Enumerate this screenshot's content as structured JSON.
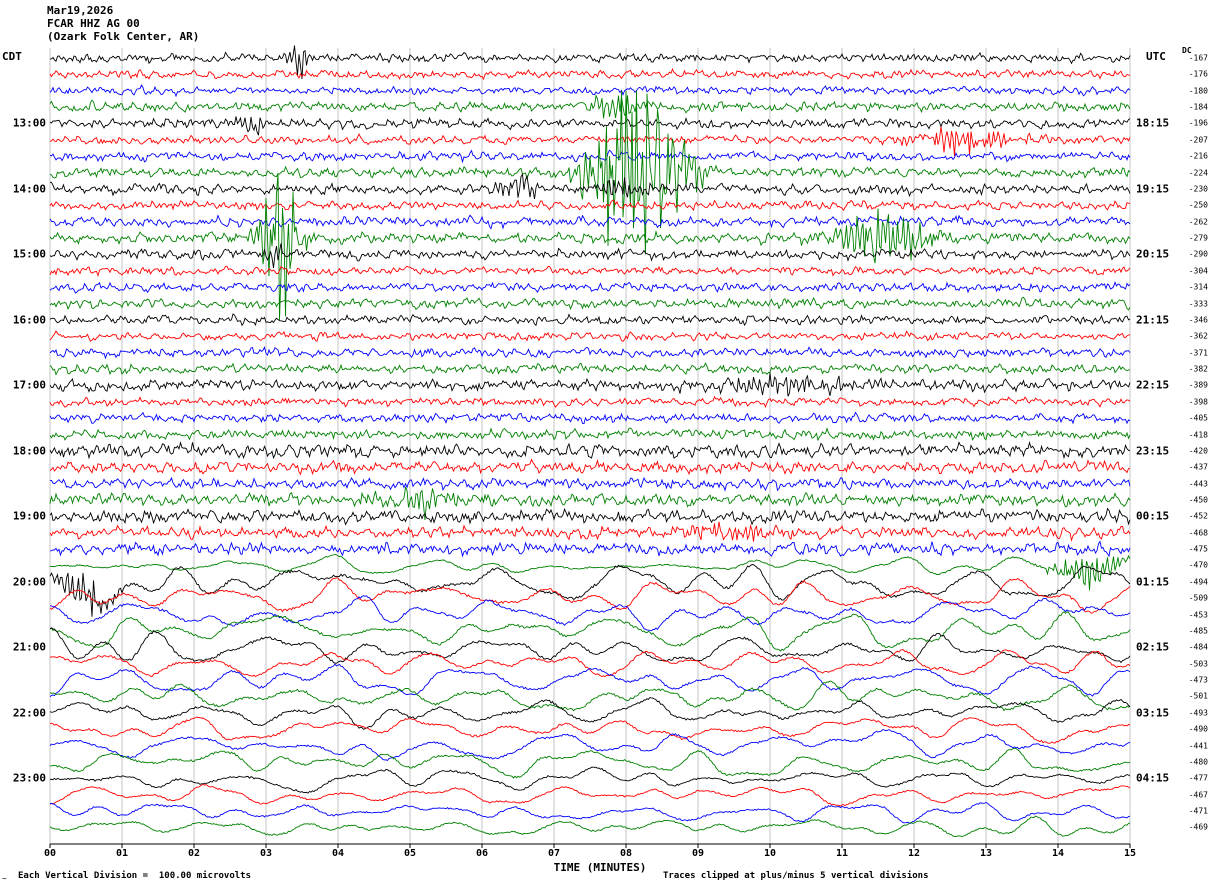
{
  "header": {
    "date": "Mar19,2026",
    "station": "FCAR HHZ AG 00",
    "location": "(Ozark Folk Center, AR)"
  },
  "axes": {
    "left_timezone": "CDT",
    "right_timezone": "UTC",
    "dc_header": "DC",
    "xlabel": "TIME (MINUTES)",
    "x_ticks": [
      "00",
      "01",
      "02",
      "03",
      "04",
      "05",
      "06",
      "07",
      "08",
      "09",
      "10",
      "11",
      "12",
      "13",
      "14",
      "15"
    ]
  },
  "hour_labels": [
    {
      "row": 4,
      "cdt": "13:00",
      "utc": "18:15"
    },
    {
      "row": 8,
      "cdt": "14:00",
      "utc": "19:15"
    },
    {
      "row": 12,
      "cdt": "15:00",
      "utc": "20:15"
    },
    {
      "row": 16,
      "cdt": "16:00",
      "utc": "21:15"
    },
    {
      "row": 20,
      "cdt": "17:00",
      "utc": "22:15"
    },
    {
      "row": 24,
      "cdt": "18:00",
      "utc": "23:15"
    },
    {
      "row": 28,
      "cdt": "19:00",
      "utc": "00:15"
    },
    {
      "row": 32,
      "cdt": "20:00",
      "utc": "01:15"
    },
    {
      "row": 36,
      "cdt": "21:00",
      "utc": "02:15"
    },
    {
      "row": 40,
      "cdt": "22:00",
      "utc": "03:15"
    },
    {
      "row": 44,
      "cdt": "23:00",
      "utc": "04:15"
    }
  ],
  "dc_values": [
    -167,
    -176,
    -180,
    -184,
    -196,
    -207,
    -216,
    -224,
    -230,
    -250,
    -262,
    -279,
    -290,
    -304,
    -314,
    -333,
    -346,
    -362,
    -371,
    -382,
    -389,
    -398,
    -405,
    -418,
    -420,
    -437,
    -443,
    -450,
    -452,
    -468,
    -475,
    -470,
    -494,
    -509,
    -453,
    -485,
    -484,
    -503,
    -473,
    -501,
    -493,
    -490,
    -441,
    -480,
    -477,
    -467,
    -471,
    -469
  ],
  "footer": {
    "left": "Each Vertical Division =  100.00 microvolts",
    "right": "Traces clipped at plus/minus 5 vertical divisions",
    "corner": "~"
  },
  "chart_data": {
    "type": "line",
    "subtype": "seismogram-helicorder",
    "title": "FCAR HHZ AG 00 (Ozark Folk Center, AR) Mar19,2026",
    "xlabel": "TIME (MINUTES)",
    "minutes_per_line": 15,
    "num_traces": 48,
    "first_trace_start_cdt": "12:00",
    "first_trace_start_utc": "17:15",
    "color_cycle": [
      "#000000",
      "#ff0000",
      "#0000ff",
      "#008000"
    ],
    "microvolts_per_division": 100,
    "clip_divisions": 5,
    "slow_style_start_row": 31,
    "trace_amps": [
      4.5,
      4,
      4,
      5,
      5,
      4,
      4.5,
      5,
      5,
      4.5,
      5,
      5.5,
      5,
      4,
      4.5,
      5,
      4.5,
      4,
      4.5,
      4.5,
      5.5,
      4,
      4.5,
      5,
      6.5,
      6,
      5.5,
      6,
      6.5,
      5.5,
      6,
      7,
      13,
      12,
      12,
      12,
      12,
      11,
      11,
      12,
      11,
      10,
      10,
      10,
      9,
      8,
      8,
      8
    ],
    "events": [
      {
        "trace": 0,
        "start": 3.3,
        "end": 3.6,
        "amp": 20
      },
      {
        "trace": 3,
        "start": 7.4,
        "end": 8.3,
        "amp": 13
      },
      {
        "trace": 4,
        "start": 2.5,
        "end": 3.3,
        "amp": 9
      },
      {
        "trace": 5,
        "start": 11.8,
        "end": 13.6,
        "amp": 12
      },
      {
        "trace": 7,
        "start": 7.4,
        "end": 8.9,
        "amp": 85
      },
      {
        "trace": 8,
        "start": 6.2,
        "end": 6.8,
        "amp": 14
      },
      {
        "trace": 8,
        "start": 7.6,
        "end": 8.4,
        "amp": 10
      },
      {
        "trace": 11,
        "start": 2.9,
        "end": 3.5,
        "amp": 85
      },
      {
        "trace": 11,
        "start": 10.7,
        "end": 12.4,
        "amp": 26
      },
      {
        "trace": 12,
        "start": 2.9,
        "end": 3.4,
        "amp": 10
      },
      {
        "trace": 20,
        "start": 8.8,
        "end": 11.6,
        "amp": 8
      },
      {
        "trace": 27,
        "start": 4.3,
        "end": 6.0,
        "amp": 11
      },
      {
        "trace": 29,
        "start": 8.5,
        "end": 10.3,
        "amp": 9
      },
      {
        "trace": 31,
        "start": 13.8,
        "end": 15.0,
        "amp": 13
      },
      {
        "trace": 32,
        "start": 0.1,
        "end": 0.9,
        "amp": 20
      }
    ]
  }
}
